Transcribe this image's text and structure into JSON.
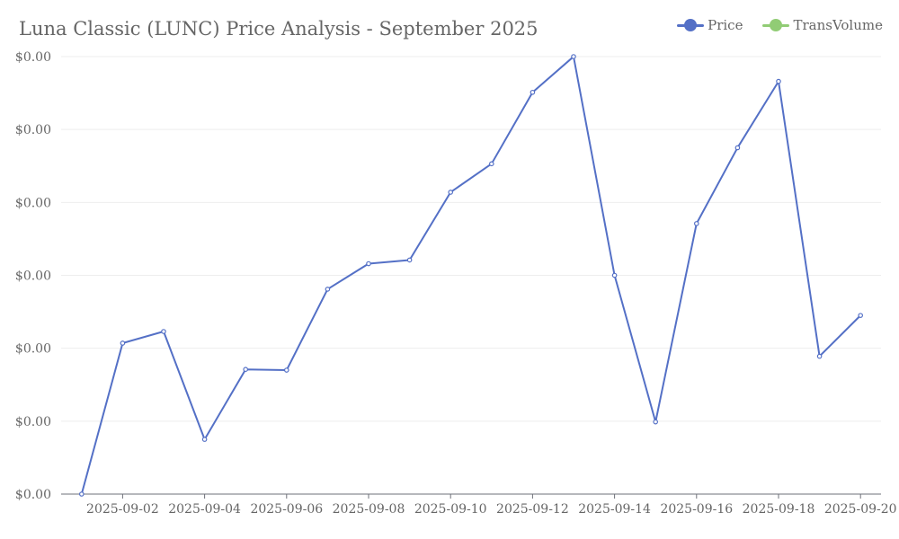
{
  "chart_data": {
    "type": "line",
    "title": "Luna Classic (LUNC) Price Analysis - September 2025",
    "xlabel": "",
    "ylabel": "",
    "x_ticks": [
      "2025-09-02",
      "2025-09-04",
      "2025-09-06",
      "2025-09-08",
      "2025-09-10",
      "2025-09-12",
      "2025-09-14",
      "2025-09-16",
      "2025-09-18",
      "2025-09-20"
    ],
    "y_ticks": [
      "$0.00",
      "$0.00",
      "$0.00",
      "$0.00",
      "$0.00",
      "$0.00",
      "$0.00"
    ],
    "ylim": [
      0,
      6
    ],
    "xlim": [
      "2025-09-01",
      "2025-09-20"
    ],
    "grid": true,
    "legend_position": "top-right",
    "series": [
      {
        "name": "Price",
        "color": "#5470c6",
        "points": [
          {
            "x": "2025-09-01",
            "y": 0.0
          },
          {
            "x": "2025-09-02",
            "y": 2.07
          },
          {
            "x": "2025-09-03",
            "y": 2.23
          },
          {
            "x": "2025-09-04",
            "y": 0.75
          },
          {
            "x": "2025-09-05",
            "y": 1.71
          },
          {
            "x": "2025-09-06",
            "y": 1.7
          },
          {
            "x": "2025-09-07",
            "y": 2.81
          },
          {
            "x": "2025-09-08",
            "y": 3.16
          },
          {
            "x": "2025-09-09",
            "y": 3.21
          },
          {
            "x": "2025-09-10",
            "y": 4.14
          },
          {
            "x": "2025-09-11",
            "y": 4.53
          },
          {
            "x": "2025-09-12",
            "y": 5.51
          },
          {
            "x": "2025-09-13",
            "y": 6.0
          },
          {
            "x": "2025-09-14",
            "y": 3.0
          },
          {
            "x": "2025-09-15",
            "y": 0.99
          },
          {
            "x": "2025-09-16",
            "y": 3.71
          },
          {
            "x": "2025-09-17",
            "y": 4.75
          },
          {
            "x": "2025-09-18",
            "y": 5.66
          },
          {
            "x": "2025-09-19",
            "y": 1.89
          },
          {
            "x": "2025-09-20",
            "y": 2.45
          }
        ]
      },
      {
        "name": "TransVolume",
        "color": "#91cc75",
        "points": []
      }
    ]
  }
}
